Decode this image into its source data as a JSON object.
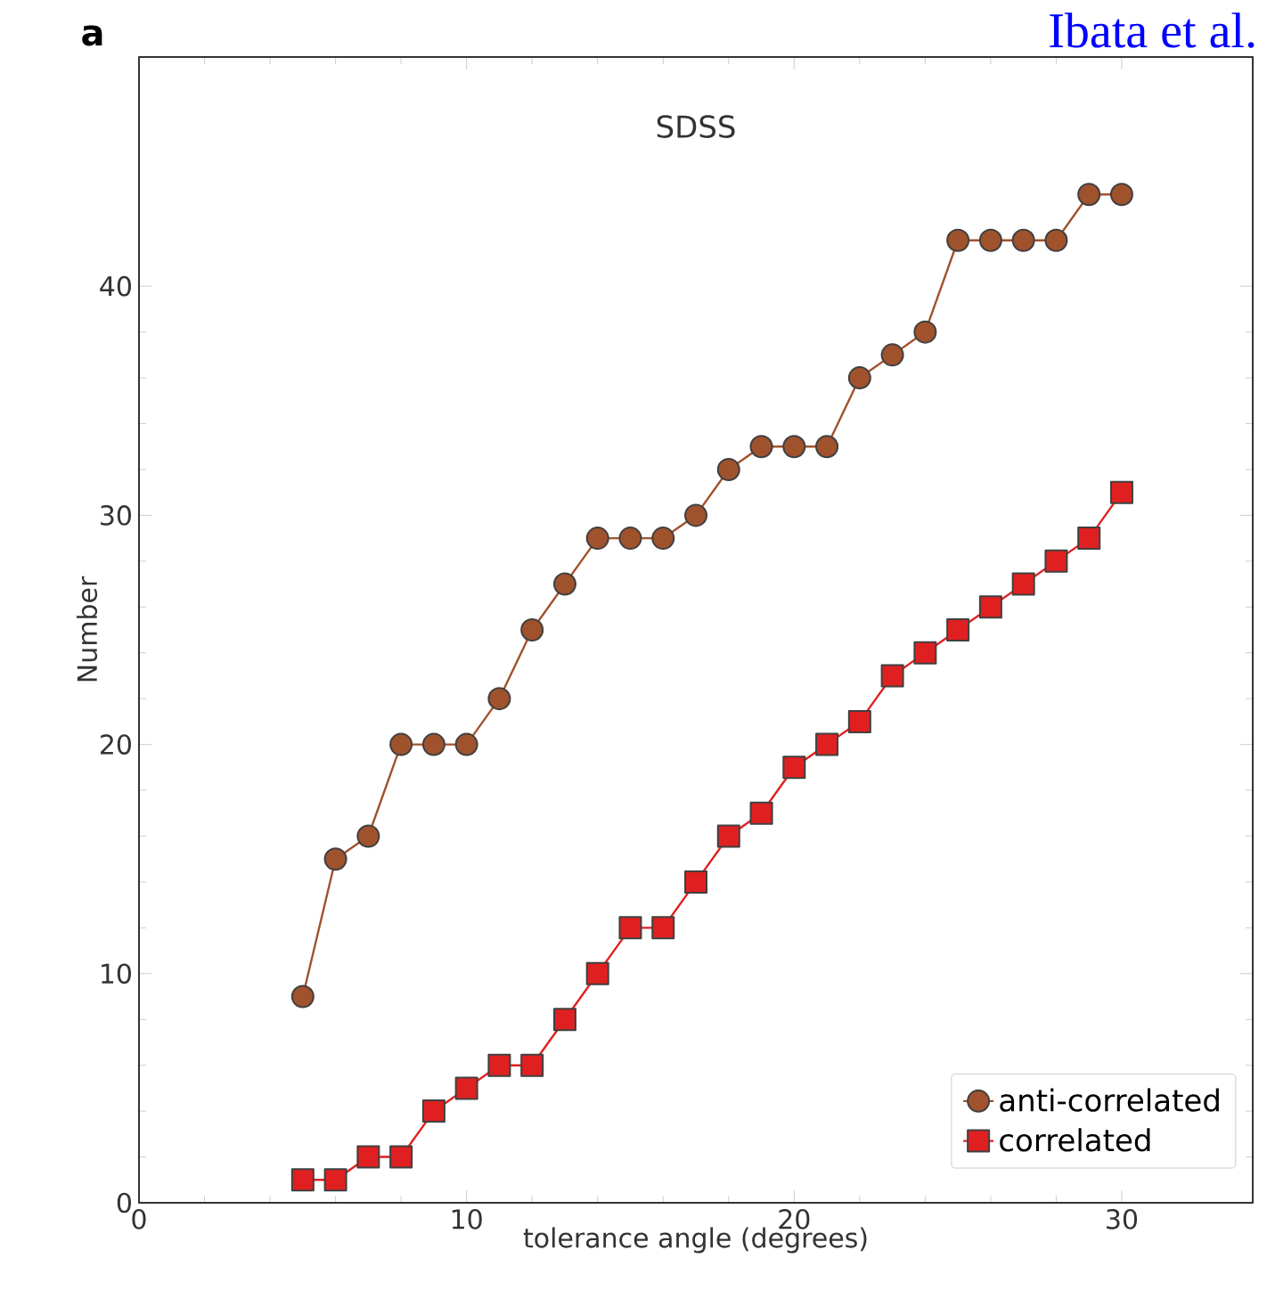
{
  "chart_data": {
    "type": "line",
    "title": "SDSS",
    "xlabel": "tolerance angle (degrees)",
    "ylabel": "Number",
    "x": [
      5,
      6,
      7,
      8,
      9,
      10,
      11,
      12,
      13,
      14,
      15,
      16,
      17,
      18,
      19,
      20,
      21,
      22,
      23,
      24,
      25,
      26,
      27,
      28,
      29,
      30
    ],
    "series": [
      {
        "name": "anti-correlated",
        "color": "#a0522d",
        "marker": "circle",
        "values": [
          9,
          15,
          16,
          20,
          20,
          20,
          22,
          25,
          27,
          29,
          29,
          29,
          30,
          32,
          33,
          33,
          33,
          36,
          37,
          38,
          42,
          42,
          42,
          42,
          44,
          44
        ]
      },
      {
        "name": "correlated",
        "color": "#e02020",
        "marker": "square",
        "values": [
          1,
          1,
          2,
          2,
          4,
          5,
          6,
          6,
          8,
          10,
          12,
          12,
          14,
          16,
          17,
          19,
          20,
          21,
          23,
          24,
          25,
          26,
          27,
          28,
          29,
          31
        ]
      }
    ],
    "xlim": [
      0,
      34
    ],
    "ylim": [
      0,
      50
    ],
    "xticks": [
      0,
      10,
      20,
      30
    ],
    "yticks": [
      0,
      10,
      20,
      30,
      40
    ],
    "legend": "bottom right",
    "grid": false,
    "annotations": [
      "a",
      "Ibata et al."
    ]
  }
}
